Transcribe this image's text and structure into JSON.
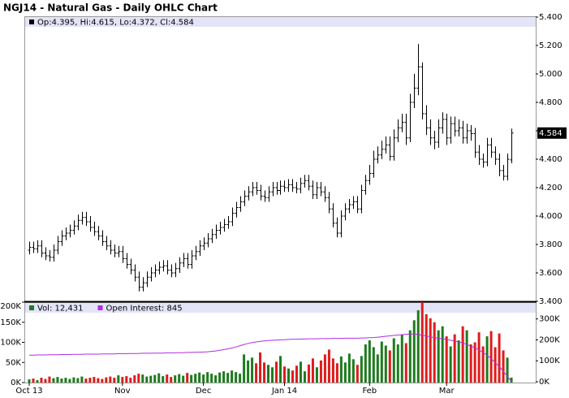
{
  "chart_data": [
    {
      "type": "ohlc",
      "title": "NGJ14 - Natural Gas - Daily OHLC Chart",
      "legend": "Op:4.395, Hi:4.615, Lo:4.372, Cl:4.584",
      "color": "#000000",
      "legend_color": "#000000",
      "band_color": "#e4e4f8",
      "xlim": [
        -1.2,
        125
      ],
      "ylim": [
        3.4,
        5.4
      ],
      "yticks": [
        {
          "value": 3.4,
          "label": "3.400"
        },
        {
          "value": 3.6,
          "label": "3.600"
        },
        {
          "value": 3.8,
          "label": "3.800"
        },
        {
          "value": 4.0,
          "label": "4.000"
        },
        {
          "value": 4.2,
          "label": "4.200"
        },
        {
          "value": 4.4,
          "label": "4.400"
        },
        {
          "value": 4.6,
          "label": "4.600"
        },
        {
          "value": 4.8,
          "label": "4.800"
        },
        {
          "value": 5.0,
          "label": "5.000"
        },
        {
          "value": 5.2,
          "label": "5.200"
        },
        {
          "value": 5.4,
          "label": "5.400"
        }
      ],
      "ohlc": [
        [
          3.76,
          3.82,
          3.73,
          3.78
        ],
        [
          3.78,
          3.82,
          3.74,
          3.77
        ],
        [
          3.77,
          3.83,
          3.74,
          3.79
        ],
        [
          3.79,
          3.83,
          3.71,
          3.74
        ],
        [
          3.74,
          3.78,
          3.69,
          3.72
        ],
        [
          3.72,
          3.76,
          3.68,
          3.71
        ],
        [
          3.71,
          3.8,
          3.68,
          3.76
        ],
        [
          3.76,
          3.86,
          3.73,
          3.82
        ],
        [
          3.82,
          3.9,
          3.79,
          3.86
        ],
        [
          3.86,
          3.92,
          3.83,
          3.88
        ],
        [
          3.88,
          3.94,
          3.85,
          3.9
        ],
        [
          3.9,
          3.97,
          3.87,
          3.93
        ],
        [
          3.93,
          4.01,
          3.9,
          3.97
        ],
        [
          3.97,
          4.03,
          3.94,
          3.99
        ],
        [
          3.99,
          4.03,
          3.93,
          3.96
        ],
        [
          3.96,
          4.0,
          3.89,
          3.92
        ],
        [
          3.92,
          3.96,
          3.86,
          3.89
        ],
        [
          3.89,
          3.93,
          3.83,
          3.86
        ],
        [
          3.86,
          3.9,
          3.79,
          3.82
        ],
        [
          3.82,
          3.86,
          3.76,
          3.79
        ],
        [
          3.79,
          3.83,
          3.73,
          3.76
        ],
        [
          3.76,
          3.8,
          3.71,
          3.74
        ],
        [
          3.74,
          3.79,
          3.71,
          3.75
        ],
        [
          3.75,
          3.79,
          3.67,
          3.7
        ],
        [
          3.7,
          3.74,
          3.63,
          3.66
        ],
        [
          3.66,
          3.7,
          3.59,
          3.62
        ],
        [
          3.62,
          3.66,
          3.54,
          3.57
        ],
        [
          3.57,
          3.61,
          3.47,
          3.5
        ],
        [
          3.5,
          3.57,
          3.47,
          3.53
        ],
        [
          3.53,
          3.61,
          3.5,
          3.57
        ],
        [
          3.57,
          3.64,
          3.54,
          3.6
        ],
        [
          3.6,
          3.66,
          3.57,
          3.62
        ],
        [
          3.62,
          3.68,
          3.59,
          3.64
        ],
        [
          3.64,
          3.69,
          3.61,
          3.65
        ],
        [
          3.65,
          3.69,
          3.59,
          3.62
        ],
        [
          3.62,
          3.66,
          3.57,
          3.6
        ],
        [
          3.6,
          3.67,
          3.57,
          3.63
        ],
        [
          3.63,
          3.71,
          3.6,
          3.67
        ],
        [
          3.67,
          3.74,
          3.64,
          3.7
        ],
        [
          3.7,
          3.74,
          3.63,
          3.66
        ],
        [
          3.66,
          3.76,
          3.63,
          3.72
        ],
        [
          3.72,
          3.79,
          3.69,
          3.75
        ],
        [
          3.75,
          3.83,
          3.72,
          3.79
        ],
        [
          3.79,
          3.85,
          3.76,
          3.81
        ],
        [
          3.81,
          3.88,
          3.78,
          3.84
        ],
        [
          3.84,
          3.91,
          3.81,
          3.87
        ],
        [
          3.87,
          3.94,
          3.84,
          3.9
        ],
        [
          3.9,
          3.96,
          3.87,
          3.92
        ],
        [
          3.92,
          3.98,
          3.89,
          3.94
        ],
        [
          3.94,
          4.0,
          3.91,
          3.96
        ],
        [
          3.96,
          4.06,
          3.93,
          4.02
        ],
        [
          4.02,
          4.1,
          3.99,
          4.06
        ],
        [
          4.06,
          4.14,
          4.03,
          4.1
        ],
        [
          4.1,
          4.18,
          4.07,
          4.14
        ],
        [
          4.14,
          4.21,
          4.11,
          4.17
        ],
        [
          4.17,
          4.24,
          4.14,
          4.2
        ],
        [
          4.2,
          4.24,
          4.15,
          4.18
        ],
        [
          4.18,
          4.22,
          4.11,
          4.14
        ],
        [
          4.14,
          4.18,
          4.1,
          4.13
        ],
        [
          4.13,
          4.21,
          4.1,
          4.17
        ],
        [
          4.17,
          4.24,
          4.14,
          4.2
        ],
        [
          4.2,
          4.24,
          4.15,
          4.18
        ],
        [
          4.18,
          4.25,
          4.15,
          4.21
        ],
        [
          4.21,
          4.25,
          4.17,
          4.2
        ],
        [
          4.2,
          4.26,
          4.17,
          4.22
        ],
        [
          4.22,
          4.26,
          4.17,
          4.2
        ],
        [
          4.2,
          4.24,
          4.16,
          4.19
        ],
        [
          4.19,
          4.27,
          4.16,
          4.23
        ],
        [
          4.23,
          4.29,
          4.2,
          4.25
        ],
        [
          4.25,
          4.29,
          4.18,
          4.21
        ],
        [
          4.21,
          4.25,
          4.12,
          4.15
        ],
        [
          4.15,
          4.24,
          4.12,
          4.2
        ],
        [
          4.2,
          4.24,
          4.14,
          4.17
        ],
        [
          4.17,
          4.21,
          4.1,
          4.13
        ],
        [
          4.13,
          4.17,
          4.02,
          4.05
        ],
        [
          4.05,
          4.09,
          3.92,
          3.95
        ],
        [
          3.95,
          3.99,
          3.85,
          3.88
        ],
        [
          3.88,
          4.04,
          3.85,
          4.0
        ],
        [
          4.0,
          4.09,
          3.97,
          4.05
        ],
        [
          4.05,
          4.12,
          4.02,
          4.08
        ],
        [
          4.08,
          4.14,
          4.05,
          4.1
        ],
        [
          4.1,
          4.14,
          4.02,
          4.05
        ],
        [
          4.05,
          4.22,
          4.02,
          4.18
        ],
        [
          4.18,
          4.29,
          4.15,
          4.25
        ],
        [
          4.25,
          4.36,
          4.22,
          4.3
        ],
        [
          4.3,
          4.46,
          4.27,
          4.4
        ],
        [
          4.4,
          4.49,
          4.37,
          4.43
        ],
        [
          4.43,
          4.53,
          4.4,
          4.47
        ],
        [
          4.47,
          4.56,
          4.44,
          4.5
        ],
        [
          4.5,
          4.56,
          4.39,
          4.42
        ],
        [
          4.42,
          4.61,
          4.39,
          4.55
        ],
        [
          4.55,
          4.68,
          4.52,
          4.62
        ],
        [
          4.62,
          4.72,
          4.59,
          4.66
        ],
        [
          4.66,
          4.72,
          4.5,
          4.55
        ],
        [
          4.55,
          4.86,
          4.52,
          4.8
        ],
        [
          4.8,
          5.0,
          4.76,
          4.9
        ],
        [
          4.9,
          5.21,
          4.85,
          5.05
        ],
        [
          5.05,
          5.08,
          4.68,
          4.72
        ],
        [
          4.72,
          4.78,
          4.57,
          4.62
        ],
        [
          4.62,
          4.68,
          4.5,
          4.55
        ],
        [
          4.55,
          4.6,
          4.47,
          4.52
        ],
        [
          4.52,
          4.68,
          4.48,
          4.62
        ],
        [
          4.62,
          4.73,
          4.58,
          4.68
        ],
        [
          4.68,
          4.72,
          4.5,
          4.55
        ],
        [
          4.55,
          4.7,
          4.51,
          4.65
        ],
        [
          4.65,
          4.7,
          4.56,
          4.6
        ],
        [
          4.6,
          4.68,
          4.56,
          4.62
        ],
        [
          4.62,
          4.67,
          4.51,
          4.55
        ],
        [
          4.55,
          4.65,
          4.51,
          4.6
        ],
        [
          4.6,
          4.64,
          4.53,
          4.58
        ],
        [
          4.58,
          4.62,
          4.41,
          4.45
        ],
        [
          4.45,
          4.5,
          4.36,
          4.4
        ],
        [
          4.4,
          4.44,
          4.34,
          4.38
        ],
        [
          4.38,
          4.55,
          4.35,
          4.5
        ],
        [
          4.5,
          4.55,
          4.41,
          4.45
        ],
        [
          4.45,
          4.49,
          4.36,
          4.4
        ],
        [
          4.4,
          4.44,
          4.28,
          4.32
        ],
        [
          4.32,
          4.36,
          4.25,
          4.28
        ],
        [
          4.28,
          4.44,
          4.25,
          4.4
        ],
        [
          4.395,
          4.615,
          4.372,
          4.584
        ]
      ]
    },
    {
      "type": "bar",
      "band_color": "#e4e4f8",
      "xlim": [
        -1.2,
        125
      ],
      "xticks": [
        {
          "value": 0,
          "label": "Oct 13"
        },
        {
          "value": 23,
          "label": "Nov"
        },
        {
          "value": 43,
          "label": "Dec"
        },
        {
          "value": 63,
          "label": "Jan 14"
        },
        {
          "value": 84,
          "label": "Feb"
        },
        {
          "value": 103,
          "label": "Mar"
        }
      ],
      "ylim": [
        0,
        200000
      ],
      "yticks": [
        {
          "value": 0,
          "label": "0K"
        },
        {
          "value": 50000,
          "label": "50K"
        },
        {
          "value": 100000,
          "label": "100K"
        },
        {
          "value": 150000,
          "label": "150K"
        },
        {
          "value": 200000,
          "label": "200K"
        }
      ],
      "y2lim": [
        0,
        380000
      ],
      "y2ticks": [
        {
          "value": 0,
          "label": "0K"
        },
        {
          "value": 100000,
          "label": "100K"
        },
        {
          "value": 200000,
          "label": "200K"
        },
        {
          "value": 300000,
          "label": "300K"
        }
      ],
      "series": [
        {
          "name": "Vol: 12,431",
          "type": "bar",
          "color": "#1e7b1e",
          "up_color": "#1e7b1e",
          "down_color": "#e01b1b",
          "values": [
            8000,
            10000,
            6000,
            12000,
            9000,
            15000,
            11000,
            14000,
            10000,
            12000,
            9000,
            13000,
            11000,
            15000,
            10000,
            12000,
            14000,
            11000,
            9000,
            13000,
            15000,
            12000,
            18000,
            14000,
            16000,
            12000,
            18000,
            22000,
            20000,
            15000,
            17000,
            19000,
            23000,
            16000,
            20000,
            14000,
            18000,
            21000,
            17000,
            24000,
            19000,
            22000,
            25000,
            20000,
            26000,
            22000,
            18000,
            25000,
            28000,
            24000,
            30000,
            26000,
            22000,
            70000,
            55000,
            62000,
            48000,
            75000,
            50000,
            44000,
            38000,
            52000,
            66000,
            40000,
            35000,
            30000,
            42000,
            52000,
            28000,
            45000,
            60000,
            38000,
            55000,
            70000,
            82000,
            60000,
            48000,
            65000,
            50000,
            72000,
            58000,
            44000,
            66000,
            95000,
            105000,
            88000,
            70000,
            102000,
            92000,
            80000,
            110000,
            95000,
            120000,
            98000,
            130000,
            155000,
            180000,
            200000,
            170000,
            160000,
            150000,
            130000,
            140000,
            115000,
            90000,
            120000,
            105000,
            140000,
            130000,
            95000,
            100000,
            125000,
            90000,
            115000,
            128000,
            88000,
            122000,
            80000,
            62000,
            12431
          ]
        },
        {
          "name": "Open Interest: 845",
          "type": "line",
          "axis": "y2",
          "color": "#b02ee0",
          "values": [
            127000,
            127000,
            128000,
            128000,
            128000,
            129000,
            129000,
            129000,
            130000,
            130000,
            130000,
            131000,
            131000,
            131000,
            132000,
            132000,
            132000,
            132000,
            133000,
            133000,
            133000,
            133000,
            134000,
            134000,
            134000,
            135000,
            135000,
            135000,
            136000,
            136000,
            136000,
            137000,
            137000,
            137000,
            138000,
            138000,
            138000,
            139000,
            139000,
            140000,
            140000,
            141000,
            141000,
            142000,
            143000,
            145000,
            147000,
            150000,
            153000,
            157000,
            161000,
            166000,
            172000,
            178000,
            183000,
            187000,
            190000,
            193000,
            195000,
            197000,
            198000,
            199000,
            200000,
            201000,
            202000,
            203000,
            203000,
            204000,
            204000,
            205000,
            205000,
            205000,
            206000,
            206000,
            206000,
            207000,
            207000,
            207000,
            208000,
            208000,
            208000,
            208000,
            209000,
            209000,
            210000,
            211000,
            213000,
            215000,
            217000,
            219000,
            221000,
            223000,
            225000,
            227000,
            228000,
            228000,
            226000,
            222000,
            218000,
            214000,
            211000,
            208000,
            205000,
            202000,
            198000,
            194000,
            190000,
            185000,
            178000,
            170000,
            162000,
            152000,
            140000,
            126000,
            110000,
            92000,
            72000,
            50000,
            26000,
            845
          ]
        }
      ]
    }
  ]
}
